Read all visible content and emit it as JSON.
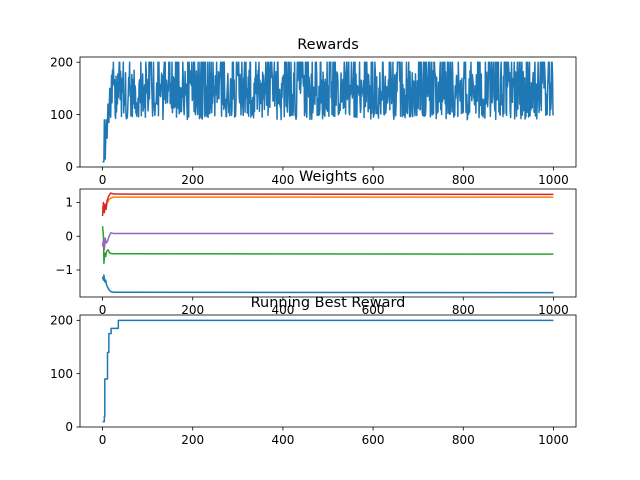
{
  "figure": {
    "background": "#ffffff"
  },
  "chart_data": [
    {
      "type": "line",
      "title": "Rewards",
      "xlabel": "",
      "ylabel": "",
      "xlim": [
        -50,
        1050
      ],
      "ylim": [
        0,
        210
      ],
      "xticks": [
        0,
        200,
        400,
        600,
        800,
        1000
      ],
      "yticks": [
        0,
        100,
        200
      ],
      "grid": false,
      "series": [
        {
          "color": "#1f77b4",
          "description": "noisy per-episode reward; starts near 10, jumps to ~90 around episode 8, then fluctuates between ~90 and 200 for episodes 20–1000",
          "x_range": [
            0,
            1000
          ],
          "early_values": [
            {
              "x": 0,
              "y": 10
            },
            {
              "x": 3,
              "y": 10
            },
            {
              "x": 4,
              "y": 90
            },
            {
              "x": 6,
              "y": 15
            },
            {
              "x": 8,
              "y": 90
            },
            {
              "x": 10,
              "y": 55
            },
            {
              "x": 12,
              "y": 120
            },
            {
              "x": 14,
              "y": 85
            },
            {
              "x": 16,
              "y": 150
            },
            {
              "x": 18,
              "y": 95
            },
            {
              "x": 20,
              "y": 175
            }
          ],
          "steady_min": 90,
          "steady_max": 200,
          "steady_mean": 140
        }
      ]
    },
    {
      "type": "line",
      "title": "Weights",
      "xlabel": "",
      "ylabel": "",
      "xlim": [
        -50,
        1050
      ],
      "ylim": [
        -1.8,
        1.4
      ],
      "xticks": [
        0,
        200,
        400,
        600,
        800,
        1000
      ],
      "yticks": [
        -1,
        0,
        1
      ],
      "grid": false,
      "series": [
        {
          "color": "#1f77b4",
          "points": [
            [
              0,
              -1.2
            ],
            [
              2,
              -1.3
            ],
            [
              3,
              -1.15
            ],
            [
              5,
              -1.35
            ],
            [
              7,
              -1.3
            ],
            [
              9,
              -1.45
            ],
            [
              11,
              -1.5
            ],
            [
              14,
              -1.58
            ],
            [
              18,
              -1.64
            ],
            [
              25,
              -1.66
            ],
            [
              1000,
              -1.67
            ]
          ]
        },
        {
          "color": "#ff7f0e",
          "points": [
            [
              0,
              0.8
            ],
            [
              2,
              0.95
            ],
            [
              4,
              0.75
            ],
            [
              6,
              0.9
            ],
            [
              8,
              0.95
            ],
            [
              11,
              1.0
            ],
            [
              14,
              1.08
            ],
            [
              18,
              1.13
            ],
            [
              25,
              1.16
            ],
            [
              1000,
              1.16
            ]
          ]
        },
        {
          "color": "#2ca02c",
          "points": [
            [
              0,
              0.3
            ],
            [
              2,
              0.0
            ],
            [
              3,
              -0.8
            ],
            [
              5,
              -0.5
            ],
            [
              7,
              -0.6
            ],
            [
              9,
              -0.45
            ],
            [
              12,
              -0.4
            ],
            [
              16,
              -0.5
            ],
            [
              22,
              -0.52
            ],
            [
              1000,
              -0.53
            ]
          ]
        },
        {
          "color": "#d62728",
          "points": [
            [
              0,
              0.6
            ],
            [
              2,
              1.0
            ],
            [
              4,
              0.7
            ],
            [
              6,
              0.95
            ],
            [
              8,
              0.8
            ],
            [
              10,
              1.05
            ],
            [
              14,
              1.2
            ],
            [
              18,
              1.28
            ],
            [
              25,
              1.25
            ],
            [
              1000,
              1.24
            ]
          ]
        },
        {
          "color": "#9467bd",
          "points": [
            [
              0,
              -0.3
            ],
            [
              2,
              -0.1
            ],
            [
              4,
              -0.4
            ],
            [
              6,
              -0.05
            ],
            [
              8,
              -0.2
            ],
            [
              11,
              -0.15
            ],
            [
              14,
              -0.02
            ],
            [
              18,
              0.1
            ],
            [
              25,
              0.08
            ],
            [
              1000,
              0.08
            ]
          ]
        }
      ]
    },
    {
      "type": "line",
      "title": "Running Best Reward",
      "xlabel": "",
      "ylabel": "",
      "xlim": [
        -50,
        1050
      ],
      "ylim": [
        0,
        210
      ],
      "xticks": [
        0,
        200,
        400,
        600,
        800,
        1000
      ],
      "yticks": [
        0,
        100,
        200
      ],
      "grid": false,
      "series": [
        {
          "color": "#1f77b4",
          "points": [
            [
              0,
              10
            ],
            [
              4,
              10
            ],
            [
              4,
              20
            ],
            [
              5,
              20
            ],
            [
              5,
              90
            ],
            [
              11,
              90
            ],
            [
              11,
              140
            ],
            [
              14,
              140
            ],
            [
              14,
              175
            ],
            [
              19,
              175
            ],
            [
              19,
              185
            ],
            [
              35,
              185
            ],
            [
              35,
              200
            ],
            [
              1000,
              200
            ]
          ]
        }
      ]
    }
  ]
}
